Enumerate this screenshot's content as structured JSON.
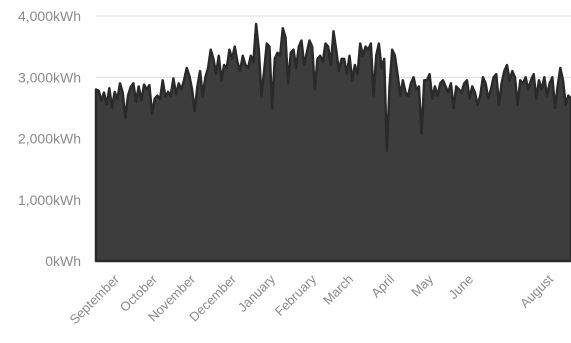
{
  "chart_data": {
    "type": "area",
    "unit": "kWh",
    "ylim": [
      0,
      4000
    ],
    "yticks": [
      0,
      1000,
      2000,
      3000,
      4000
    ],
    "ytick_labels": [
      "0kWh",
      "1,000kWh",
      "2,000kWh",
      "3,000kWh",
      "4,000kWh"
    ],
    "grid": true,
    "months": [
      "September",
      "October",
      "November",
      "December",
      "January",
      "February",
      "March",
      "April",
      "May",
      "June",
      "August"
    ],
    "series": [
      {
        "fill_color": "#3d3d3d",
        "line_color": "#2a2a2a",
        "values": [
          2800,
          2780,
          2620,
          2750,
          2550,
          2820,
          2500,
          2760,
          2640,
          2900,
          2750,
          2330,
          2700,
          2840,
          2900,
          2600,
          2850,
          2620,
          2880,
          2800,
          2870,
          2400,
          2650,
          2700,
          2640,
          2950,
          2680,
          2760,
          2700,
          2980,
          2720,
          2900,
          2800,
          2950,
          3150,
          3020,
          2800,
          2450,
          2850,
          3100,
          2700,
          3000,
          3150,
          3450,
          3300,
          3050,
          3350,
          2950,
          3200,
          3150,
          3450,
          3300,
          3500,
          3250,
          3100,
          3350,
          3200,
          3150,
          3350,
          3250,
          3870,
          3450,
          2700,
          3100,
          3550,
          3500,
          2500,
          3300,
          3400,
          3350,
          3800,
          3650,
          2900,
          3400,
          3450,
          3150,
          3500,
          3600,
          3200,
          3400,
          3600,
          3500,
          2800,
          3300,
          3350,
          3250,
          3550,
          3500,
          3200,
          3750,
          3450,
          3100,
          3300,
          3300,
          3050,
          3350,
          2950,
          3200,
          3050,
          3550,
          3350,
          3500,
          3450,
          3550,
          2700,
          3350,
          3550,
          3150,
          3300,
          1800,
          2850,
          3450,
          3350,
          3050,
          2700,
          2950,
          2750,
          2700,
          2900,
          3000,
          2800,
          2850,
          2080,
          2950,
          2950,
          3050,
          2650,
          2850,
          2700,
          2900,
          2950,
          2850,
          2750,
          2900,
          2500,
          2850,
          2800,
          2750,
          2900,
          2950,
          2650,
          2850,
          2750,
          2550,
          2700,
          3000,
          2900,
          2650,
          2800,
          3000,
          3050,
          2550,
          2900,
          3100,
          3200,
          2950,
          3100,
          3000,
          2550,
          2950,
          2900,
          3000,
          2800,
          2950,
          3050,
          2650,
          2950,
          2800,
          3000,
          2700,
          2900,
          3000,
          2500,
          2850,
          3150,
          2950,
          2550,
          2700,
          2650
        ]
      }
    ]
  }
}
